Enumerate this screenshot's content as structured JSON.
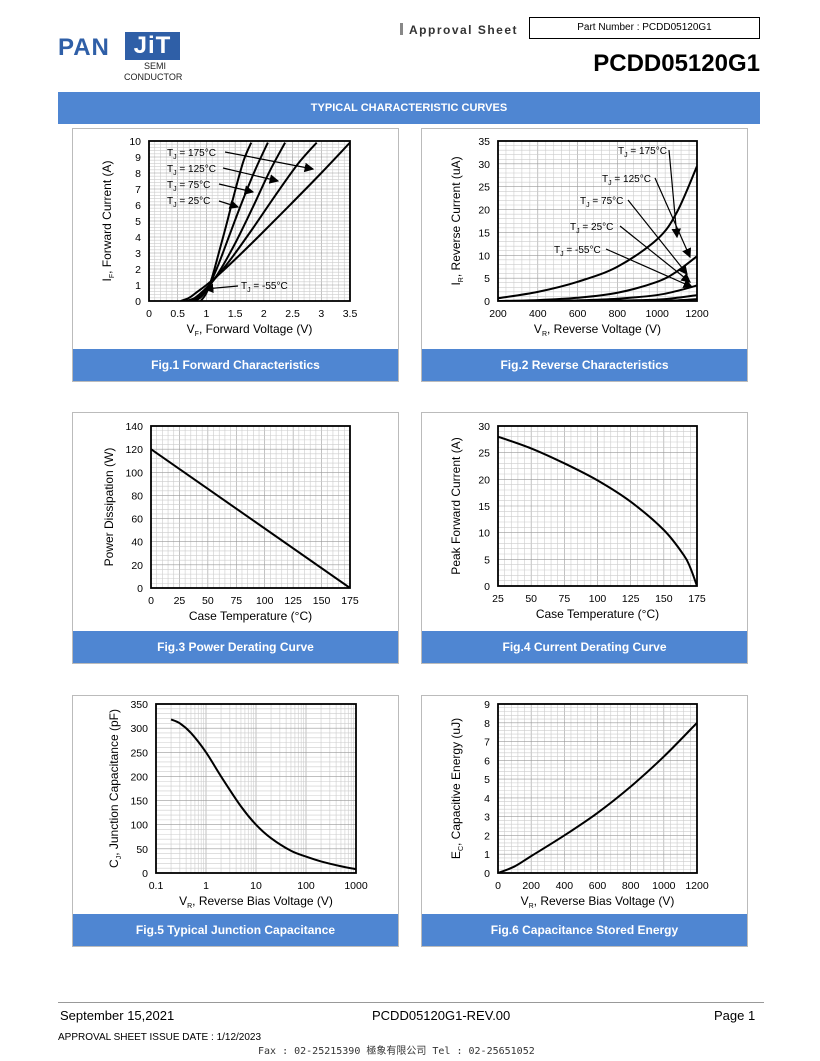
{
  "header": {
    "logo_main": "PAN",
    "logo_box": "JiT",
    "logo_semi": "SEMI",
    "logo_conductor": "CONDUCTOR",
    "approval": "Approval  Sheet",
    "part_box": "Part Number : PCDD05120G1",
    "part_number": "PCDD05120G1",
    "brand_color": "#2f5fa7"
  },
  "banner": {
    "title": "TYPICAL CHARACTERISTIC CURVES",
    "color": "#4f86d2"
  },
  "footer": {
    "date": "September 15,2021",
    "rev": "PCDD05120G1-REV.00",
    "page": "Page 1",
    "issue": "APPROVAL SHEET ISSUE DATE : 1/12/2023",
    "fax": "Fax : 02-25215390     極象有限公司       Tel : 02-25651052"
  },
  "chart_data": [
    {
      "type": "line",
      "caption": "Fig.1 Forward Characteristics",
      "xlabel": "VF, Forward Voltage (V)",
      "ylabel": "IF, Forward Current (A)",
      "xlim": [
        0,
        3.5
      ],
      "ylim": [
        0,
        10
      ],
      "xticks": [
        "0",
        "0.5",
        "1",
        "1.5",
        "2",
        "2.5",
        "3",
        "3.5"
      ],
      "yticks": [
        "0",
        "1",
        "2",
        "3",
        "4",
        "5",
        "6",
        "7",
        "8",
        "9",
        "10"
      ],
      "grid": true,
      "series": [
        {
          "name": "TJ = 175°C",
          "x": [
            0.55,
            0.7,
            0.85,
            1.0,
            1.2,
            1.5,
            1.9,
            2.4,
            3.0,
            3.5
          ],
          "y": [
            0,
            0.2,
            0.6,
            1.0,
            1.6,
            2.6,
            4.0,
            5.8,
            8.0,
            9.9
          ]
        },
        {
          "name": "TJ = 125°C",
          "x": [
            0.65,
            0.8,
            0.95,
            1.1,
            1.4,
            1.8,
            2.2,
            2.6,
            2.92
          ],
          "y": [
            0,
            0.2,
            0.65,
            1.2,
            2.5,
            4.5,
            6.6,
            8.6,
            9.9
          ]
        },
        {
          "name": "TJ = 75°C",
          "x": [
            0.72,
            0.85,
            1.0,
            1.2,
            1.5,
            1.8,
            2.1,
            2.37
          ],
          "y": [
            0,
            0.2,
            0.75,
            1.7,
            3.6,
            5.8,
            8.1,
            9.9
          ]
        },
        {
          "name": "TJ = 25°C",
          "x": [
            0.8,
            0.92,
            1.05,
            1.2,
            1.4,
            1.6,
            1.85,
            2.07
          ],
          "y": [
            0,
            0.3,
            1.0,
            2.2,
            4.1,
            6.0,
            8.2,
            9.9
          ]
        },
        {
          "name": "TJ = -55°C",
          "x": [
            0.9,
            1.0,
            1.1,
            1.2,
            1.35,
            1.5,
            1.65,
            1.78
          ],
          "y": [
            0,
            0.5,
            1.5,
            2.8,
            4.8,
            6.9,
            8.8,
            9.9
          ]
        }
      ],
      "annotations": [
        "TJ = 175°C",
        "TJ = 125°C",
        "TJ = 75°C",
        "TJ = 25°C",
        "TJ = -55°C"
      ]
    },
    {
      "type": "line",
      "caption": "Fig.2 Reverse Characteristics",
      "xlabel": "VR, Reverse Voltage (V)",
      "ylabel": "IR, Reverse Current (uA)",
      "xlim": [
        200,
        1200
      ],
      "ylim": [
        0,
        35
      ],
      "xticks": [
        "200",
        "400",
        "600",
        "800",
        "1000",
        "1200"
      ],
      "yticks": [
        "0",
        "5",
        "10",
        "15",
        "20",
        "25",
        "30",
        "35"
      ],
      "grid": true,
      "series": [
        {
          "name": "TJ = 175°C",
          "x": [
            200,
            400,
            600,
            800,
            1000,
            1100,
            1200
          ],
          "y": [
            0.6,
            2.0,
            4.2,
            7.5,
            13.5,
            19.5,
            29.5
          ]
        },
        {
          "name": "TJ = 125°C",
          "x": [
            200,
            400,
            600,
            800,
            1000,
            1100,
            1200
          ],
          "y": [
            0,
            0.2,
            0.7,
            1.8,
            4.2,
            6.5,
            9.8
          ]
        },
        {
          "name": "TJ = 75°C",
          "x": [
            200,
            400,
            600,
            800,
            1000,
            1100,
            1200
          ],
          "y": [
            0,
            0,
            0.15,
            0.5,
            1.3,
            2.2,
            3.4
          ]
        },
        {
          "name": "TJ = 25°C",
          "x": [
            200,
            600,
            800,
            1000,
            1100,
            1200
          ],
          "y": [
            0,
            0,
            0.1,
            0.3,
            0.7,
            1.3
          ]
        },
        {
          "name": "TJ = -55°C",
          "x": [
            200,
            800,
            1000,
            1100,
            1200
          ],
          "y": [
            0,
            0,
            0.05,
            0.15,
            0.4
          ]
        }
      ],
      "annotations": [
        "TJ = 175°C",
        "TJ = 125°C",
        "TJ = 75°C",
        "TJ = 25°C",
        "TJ = -55°C"
      ]
    },
    {
      "type": "line",
      "caption": "Fig.3 Power Derating Curve",
      "xlabel": "Case Temperature (°C)",
      "ylabel": "Power Dissipation (W)",
      "xlim": [
        0,
        175
      ],
      "ylim": [
        0,
        140
      ],
      "xticks": [
        "0",
        "25",
        "50",
        "75",
        "100",
        "125",
        "150",
        "175"
      ],
      "yticks": [
        "0",
        "20",
        "40",
        "60",
        "80",
        "100",
        "120",
        "140"
      ],
      "grid": true,
      "series": [
        {
          "x": [
            0,
            175
          ],
          "y": [
            120,
            0
          ]
        }
      ]
    },
    {
      "type": "line",
      "caption": "Fig.4 Current Derating Curve",
      "xlabel": "Case Temperature (°C)",
      "ylabel": "Peak Forward Current (A)",
      "xlim": [
        25,
        175
      ],
      "ylim": [
        0,
        30
      ],
      "xticks": [
        "25",
        "50",
        "75",
        "100",
        "125",
        "150",
        "175"
      ],
      "yticks": [
        "0",
        "5",
        "10",
        "15",
        "20",
        "25",
        "30"
      ],
      "grid": true,
      "series": [
        {
          "x": [
            25,
            50,
            75,
            100,
            125,
            150,
            165,
            170,
            175
          ],
          "y": [
            28,
            25.8,
            23,
            19.8,
            15.8,
            10.5,
            5.8,
            3.4,
            0
          ]
        }
      ]
    },
    {
      "type": "line",
      "caption": "Fig.5 Typical Junction Capacitance",
      "xlabel": "VR, Reverse Bias Voltage (V)",
      "ylabel": "CJ, Junction Capacitance (pF)",
      "xscale": "log",
      "xlim": [
        0.1,
        1000
      ],
      "ylim": [
        0,
        350
      ],
      "xticks": [
        "0.1",
        "1",
        "10",
        "100",
        "1000"
      ],
      "yticks": [
        "0",
        "50",
        "100",
        "150",
        "200",
        "250",
        "300",
        "350"
      ],
      "grid": true,
      "series": [
        {
          "x": [
            0.2,
            0.3,
            0.5,
            1,
            2,
            5,
            10,
            20,
            50,
            100,
            200,
            500,
            1000
          ],
          "y": [
            318,
            310,
            290,
            250,
            200,
            138,
            100,
            72,
            46,
            34,
            24,
            14,
            8
          ]
        }
      ]
    },
    {
      "type": "line",
      "caption": "Fig.6 Capacitance Stored Energy",
      "xlabel": "VR, Reverse Bias Voltage (V)",
      "ylabel": "EC, Capacitive Energy (uJ)",
      "xlim": [
        0,
        1200
      ],
      "ylim": [
        0,
        9
      ],
      "xticks": [
        "0",
        "200",
        "400",
        "600",
        "800",
        "1000",
        "1200"
      ],
      "yticks": [
        "0",
        "1",
        "2",
        "3",
        "4",
        "5",
        "6",
        "7",
        "8",
        "9"
      ],
      "grid": true,
      "series": [
        {
          "x": [
            0,
            100,
            200,
            400,
            600,
            800,
            1000,
            1200
          ],
          "y": [
            0,
            0.35,
            0.9,
            2.0,
            3.2,
            4.6,
            6.2,
            8.0
          ]
        }
      ]
    }
  ]
}
